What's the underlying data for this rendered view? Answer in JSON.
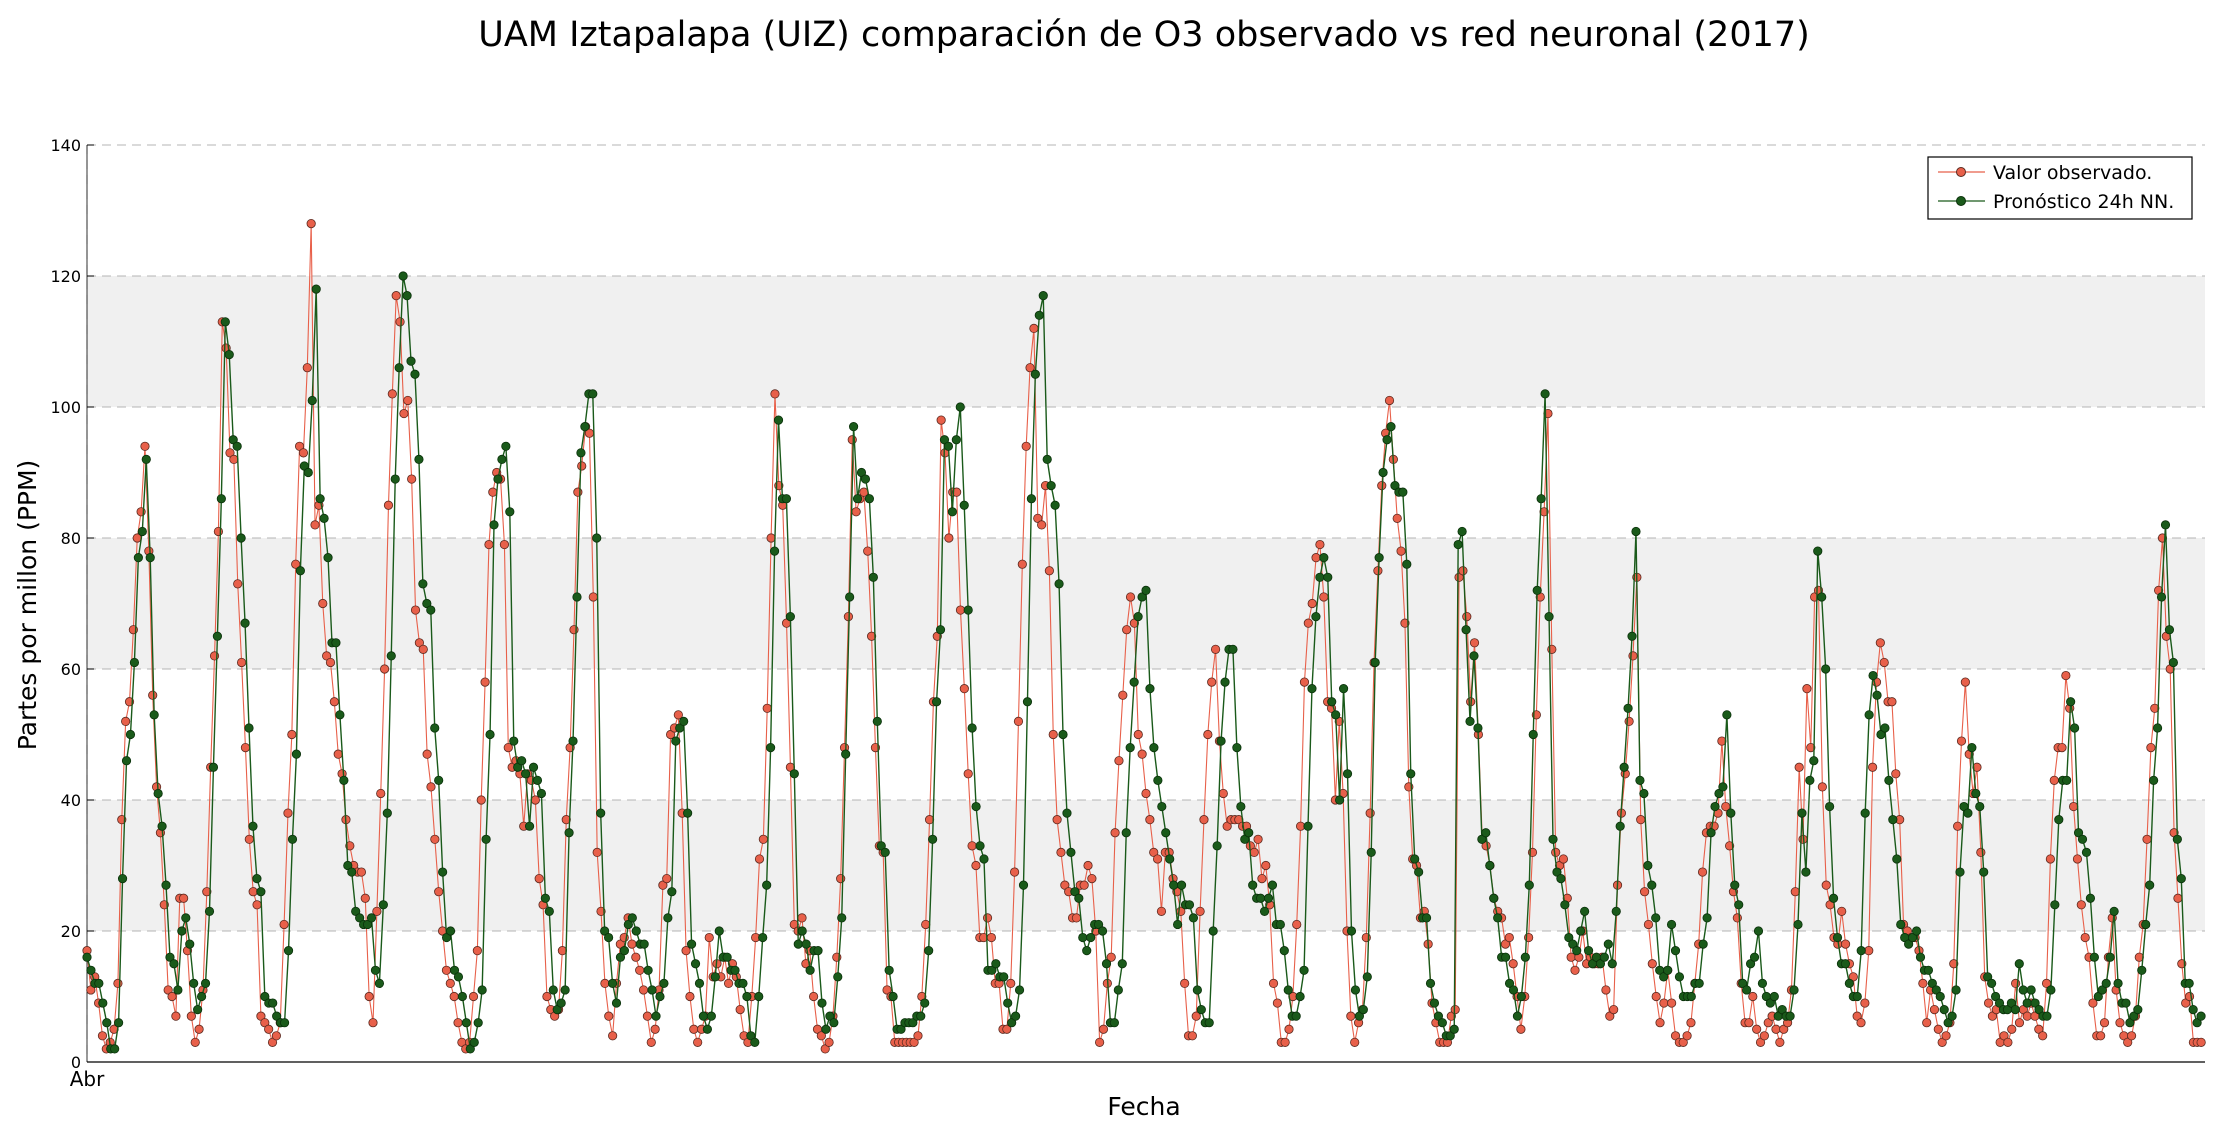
{
  "chart_data": {
    "type": "line",
    "title": "UAM Iztapalapa (UIZ) comparación de O3 observado vs red neuronal (2017)",
    "xlabel": "Fecha",
    "ylabel": "Partes por millon (PPM)",
    "ylim": [
      0,
      140
    ],
    "yticks": [
      0,
      20,
      40,
      60,
      80,
      100,
      120,
      140
    ],
    "xtick_labels": [
      "Abr"
    ],
    "x_range_hours": [
      0,
      1021
    ],
    "grid": true,
    "grid_style": "dashed",
    "band_fill": "#f0f0f0",
    "legend_position": "top-right",
    "series": [
      {
        "name": "Valor observado.",
        "color": "#e8604a",
        "marker_edge": "#5a2a20",
        "values": [
          17,
          11,
          13,
          9,
          4,
          2,
          3,
          5,
          12,
          37,
          52,
          55,
          66,
          80,
          84,
          94,
          78,
          56,
          42,
          35,
          24,
          11,
          10,
          7,
          25,
          25,
          17,
          7,
          3,
          5,
          11,
          26,
          45,
          62,
          81,
          113,
          109,
          93,
          92,
          73,
          61,
          48,
          34,
          26,
          24,
          7,
          6,
          5,
          3,
          4,
          6,
          21,
          38,
          50,
          76,
          94,
          93,
          106,
          128,
          82,
          85,
          70,
          62,
          61,
          55,
          47,
          44,
          37,
          33,
          30,
          29,
          29,
          25,
          10,
          6,
          23,
          41,
          60,
          85,
          102,
          117,
          113,
          99,
          101,
          89,
          69,
          64,
          63,
          47,
          42,
          34,
          26,
          20,
          14,
          12,
          10,
          6,
          3,
          2,
          3,
          10,
          17,
          40,
          58,
          79,
          87,
          90,
          89,
          79,
          48,
          45,
          46,
          44,
          36,
          44,
          43,
          40,
          28,
          24,
          10,
          8,
          7,
          8,
          17,
          37,
          48,
          66,
          87,
          91,
          97,
          96,
          71,
          32,
          23,
          12,
          7,
          4,
          12,
          18,
          19,
          22,
          18,
          16,
          14,
          11,
          7,
          3,
          5,
          11,
          27,
          28,
          50,
          51,
          53,
          38,
          17,
          10,
          5,
          3,
          5,
          7,
          19,
          13,
          15,
          13,
          16,
          12,
          15,
          13,
          8,
          4,
          3,
          10,
          19,
          31,
          34,
          54,
          80,
          102,
          88,
          85,
          67,
          45,
          21,
          20,
          22,
          15,
          17,
          10,
          5,
          4,
          2,
          3,
          7,
          16,
          28,
          48,
          68,
          95,
          84,
          86,
          87,
          78,
          65,
          48,
          33,
          32,
          11,
          10,
          3,
          3,
          3,
          3,
          3,
          3,
          4,
          10,
          21,
          37,
          55,
          65,
          98,
          93,
          80,
          87,
          87,
          69,
          57,
          44,
          33,
          30,
          19,
          19,
          22,
          19,
          12,
          12,
          5,
          5,
          12,
          29,
          52,
          76,
          94,
          106,
          112,
          83,
          82,
          88,
          75,
          50,
          37,
          32,
          27,
          26,
          22,
          22,
          27,
          27,
          30,
          28,
          20,
          3,
          5,
          12,
          16,
          35,
          46,
          56,
          66,
          71,
          67,
          50,
          47,
          41,
          37,
          32,
          31,
          23,
          32,
          32,
          28,
          26,
          23,
          12,
          4,
          4,
          7,
          23,
          37,
          50,
          58,
          63,
          49,
          41,
          36,
          37,
          37,
          37,
          36,
          36,
          33,
          32,
          34,
          28,
          30,
          24,
          12,
          9,
          3,
          3,
          5,
          10,
          21,
          36,
          58,
          67,
          70,
          77,
          79,
          71,
          55,
          54,
          40,
          52,
          41,
          20,
          7,
          3,
          6,
          8,
          19,
          38,
          61,
          75,
          88,
          96,
          101,
          92,
          83,
          78,
          67,
          42,
          31,
          30,
          22,
          23,
          18,
          9,
          6,
          3,
          3,
          3,
          7,
          8,
          74,
          75,
          68,
          55,
          64,
          50,
          34,
          33,
          30,
          25,
          23,
          22,
          18,
          19,
          15,
          10,
          5,
          10,
          19,
          32,
          53,
          71,
          84,
          99,
          63,
          32,
          30,
          31,
          25,
          16,
          14,
          16,
          20,
          15,
          16,
          15,
          15,
          16,
          11,
          7,
          8,
          27,
          38,
          44,
          52,
          62,
          74,
          37,
          26,
          21,
          15,
          10,
          6,
          9,
          14,
          9,
          4,
          3,
          3,
          4,
          6,
          12,
          18,
          29,
          35,
          36,
          36,
          38,
          49,
          39,
          33,
          26,
          22,
          12,
          6,
          6,
          10,
          5,
          3,
          4,
          6,
          7,
          5,
          3,
          5,
          6,
          11,
          26,
          45,
          34,
          57,
          48,
          71,
          72,
          42,
          27,
          24,
          19,
          18,
          23,
          18,
          15,
          13,
          7,
          6,
          9,
          17,
          45,
          58,
          64,
          61,
          55,
          55,
          44,
          37,
          21,
          20,
          19,
          19,
          17,
          12,
          6,
          11,
          8,
          5,
          3,
          4,
          6,
          15,
          36,
          49,
          58,
          47,
          41,
          45,
          32,
          13,
          9,
          7,
          8,
          3,
          4,
          3,
          5,
          12,
          6,
          8,
          7,
          9,
          7,
          5,
          4,
          12,
          31,
          43,
          48,
          48,
          59,
          54,
          39,
          31,
          24,
          19,
          16,
          9,
          4,
          4,
          6,
          16,
          22,
          11,
          6,
          4,
          3,
          4,
          7,
          16,
          21,
          34,
          48,
          54,
          72,
          80,
          65,
          60,
          35,
          25,
          15,
          9,
          10,
          3,
          3,
          3
        ]
      },
      {
        "name": "Pronóstico 24h NN.",
        "color": "#1a5a1a",
        "marker_edge": "#0a300a",
        "values": [
          16,
          14,
          12,
          12,
          9,
          6,
          2,
          2,
          6,
          28,
          46,
          50,
          61,
          77,
          81,
          92,
          77,
          53,
          41,
          36,
          27,
          16,
          15,
          11,
          20,
          22,
          18,
          12,
          8,
          10,
          12,
          23,
          45,
          65,
          86,
          113,
          108,
          95,
          94,
          80,
          67,
          51,
          36,
          28,
          26,
          10,
          9,
          9,
          7,
          6,
          6,
          17,
          34,
          47,
          75,
          91,
          90,
          101,
          118,
          86,
          83,
          77,
          64,
          64,
          53,
          43,
          30,
          29,
          23,
          22,
          21,
          21,
          22,
          14,
          12,
          24,
          38,
          62,
          89,
          106,
          120,
          117,
          107,
          105,
          92,
          73,
          70,
          69,
          51,
          43,
          29,
          19,
          20,
          14,
          13,
          10,
          6,
          2,
          3,
          6,
          11,
          34,
          50,
          82,
          89,
          92,
          94,
          84,
          49,
          45,
          46,
          44,
          36,
          45,
          43,
          41,
          25,
          23,
          11,
          8,
          9,
          11,
          35,
          49,
          71,
          93,
          97,
          102,
          102,
          80,
          38,
          20,
          19,
          12,
          9,
          16,
          17,
          21,
          22,
          20,
          18,
          18,
          14,
          11,
          7,
          10,
          12,
          22,
          26,
          49,
          51,
          52,
          38,
          18,
          15,
          12,
          7,
          5,
          7,
          13,
          20,
          16,
          16,
          14,
          14,
          12,
          12,
          10,
          4,
          3,
          10,
          19,
          27,
          48,
          78,
          98,
          86,
          86,
          68,
          44,
          18,
          20,
          18,
          14,
          17,
          17,
          9,
          5,
          7,
          6,
          13,
          22,
          47,
          71,
          97,
          86,
          90,
          89,
          86,
          74,
          52,
          33,
          32,
          14,
          10,
          5,
          5,
          6,
          6,
          6,
          7,
          7,
          9,
          17,
          34,
          55,
          66,
          95,
          94,
          84,
          95,
          100,
          85,
          69,
          51,
          39,
          33,
          31,
          14,
          14,
          15,
          13,
          13,
          9,
          6,
          7,
          11,
          27,
          55,
          86,
          105,
          114,
          117,
          92,
          88,
          85,
          73,
          50,
          38,
          32,
          26,
          25,
          19,
          17,
          19,
          21,
          21,
          20,
          15,
          6,
          6,
          11,
          15,
          35,
          48,
          58,
          68,
          71,
          72,
          57,
          48,
          43,
          39,
          35,
          31,
          27,
          21,
          27,
          24,
          24,
          22,
          11,
          8,
          6,
          6,
          20,
          33,
          49,
          58,
          63,
          63,
          48,
          39,
          34,
          35,
          27,
          25,
          25,
          23,
          25,
          27,
          21,
          21,
          17,
          11,
          7,
          7,
          10,
          14,
          36,
          57,
          68,
          74,
          77,
          74,
          55,
          53,
          40,
          57,
          44,
          20,
          11,
          7,
          8,
          13,
          32,
          61,
          77,
          90,
          95,
          97,
          88,
          87,
          87,
          76,
          44,
          31,
          29,
          22,
          22,
          12,
          9,
          7,
          6,
          4,
          4,
          5,
          79,
          81,
          66,
          52,
          62,
          51,
          34,
          35,
          30,
          25,
          22,
          16,
          16,
          12,
          11,
          7,
          10,
          16,
          27,
          50,
          72,
          86,
          102,
          68,
          34,
          29,
          28,
          24,
          19,
          18,
          17,
          20,
          23,
          17,
          15,
          16,
          15,
          16,
          18,
          15,
          23,
          36,
          45,
          54,
          65,
          81,
          43,
          41,
          30,
          27,
          22,
          14,
          13,
          14,
          21,
          17,
          13,
          10,
          10,
          10,
          12,
          12,
          18,
          22,
          35,
          39,
          41,
          42,
          53,
          38,
          27,
          24,
          12,
          11,
          15,
          16,
          20,
          12,
          10,
          9,
          10,
          7,
          8,
          7,
          7,
          11,
          21,
          38,
          29,
          43,
          46,
          78,
          71,
          60,
          39,
          25,
          19,
          15,
          15,
          12,
          10,
          10,
          17,
          38,
          53,
          59,
          56,
          50,
          51,
          43,
          37,
          31,
          21,
          19,
          18,
          19,
          20,
          16,
          14,
          14,
          12,
          11,
          10,
          8,
          6,
          7,
          11,
          29,
          39,
          38,
          48,
          41,
          39,
          29,
          13,
          12,
          10,
          9,
          8,
          8,
          9,
          8,
          15,
          11,
          9,
          11,
          9,
          8,
          7,
          7,
          11,
          24,
          37,
          43,
          43,
          55,
          51,
          35,
          34,
          32,
          25,
          16,
          10,
          11,
          12,
          16,
          23,
          12,
          9,
          9,
          6,
          7,
          8,
          14,
          21,
          27,
          43,
          51,
          71,
          82,
          66,
          61,
          34,
          28,
          12,
          12,
          8,
          6,
          7
        ]
      }
    ]
  }
}
